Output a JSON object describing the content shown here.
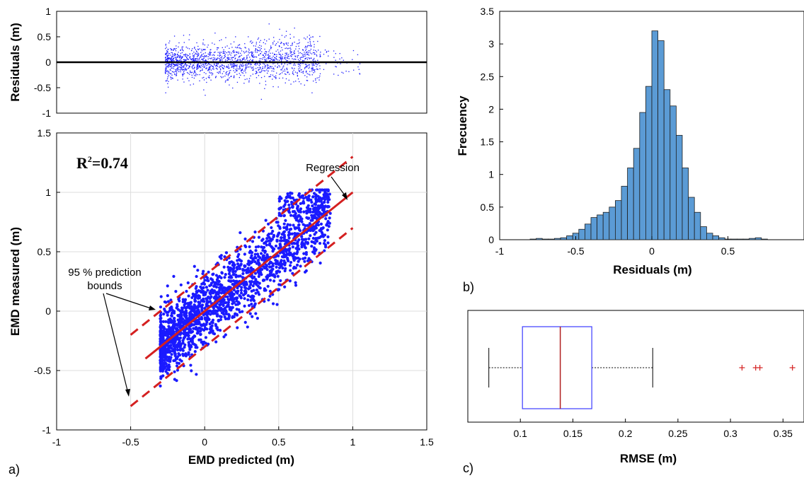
{
  "colors": {
    "scatter": "#1a1aff",
    "regression": "#d42020",
    "histogram_fill": "#5b9bd5",
    "box": "#3b3bff",
    "median": "#b02020",
    "outlier": "#d42020"
  },
  "panel_labels": {
    "a": "a)",
    "b": "b)",
    "c": "c)"
  },
  "chart_data": [
    {
      "id": "residuals",
      "type": "scatter",
      "ylabel": "Residuals (m)",
      "xlim": [
        -1,
        1.5
      ],
      "ylim": [
        -1,
        1
      ],
      "yticks": [
        -1,
        -0.5,
        0,
        0.5,
        1
      ],
      "reference_line_y": 0,
      "point_cloud": {
        "x_range": [
          -0.27,
          1.05
        ],
        "y_range": [
          -0.72,
          0.78
        ]
      }
    },
    {
      "id": "measured_vs_predicted",
      "type": "scatter",
      "xlabel": "EMD predicted (m)",
      "ylabel": "EMD measured (m)",
      "xlim": [
        -1,
        1.5
      ],
      "ylim": [
        -1,
        1.5
      ],
      "xticks": [
        -1,
        -0.5,
        0,
        0.5,
        1,
        1.5
      ],
      "yticks": [
        -1,
        -0.5,
        0,
        0.5,
        1,
        1.5
      ],
      "grid": true,
      "r2_label": "R",
      "r2_sup": "2",
      "r2_value": "=0.74",
      "regression": {
        "name": "Regression",
        "x": [
          -0.4,
          1.0
        ],
        "y": [
          -0.4,
          1.0
        ]
      },
      "prediction_bounds": {
        "name_line1": "95 % prediction",
        "name_line2": "bounds",
        "upper": {
          "x": [
            -0.5,
            1.0
          ],
          "y": [
            -0.2,
            1.3
          ]
        },
        "lower": {
          "x": [
            -0.5,
            1.0
          ],
          "y": [
            -0.8,
            0.7
          ]
        }
      },
      "point_cloud": {
        "x_range": [
          -0.3,
          0.85
        ],
        "y_range": [
          -0.63,
          1.02
        ]
      }
    },
    {
      "id": "residual_histogram",
      "type": "bar",
      "xlabel": "Residuals (m)",
      "ylabel": "Frecuency",
      "xlim": [
        -1,
        1
      ],
      "ylim": [
        0,
        3.5
      ],
      "xticks": [
        -1,
        -0.5,
        0,
        0.5
      ],
      "yticks": [
        0,
        0.5,
        1,
        1.5,
        2,
        2.5,
        3,
        3.5
      ],
      "bin_width": 0.04,
      "bin_centers": [
        -0.78,
        -0.74,
        -0.7,
        -0.66,
        -0.62,
        -0.58,
        -0.54,
        -0.5,
        -0.46,
        -0.42,
        -0.38,
        -0.34,
        -0.3,
        -0.26,
        -0.22,
        -0.18,
        -0.14,
        -0.1,
        -0.06,
        -0.02,
        0.02,
        0.06,
        0.1,
        0.14,
        0.18,
        0.22,
        0.26,
        0.3,
        0.34,
        0.38,
        0.42,
        0.46,
        0.5,
        0.54,
        0.58,
        0.62,
        0.66,
        0.7,
        0.74
      ],
      "values": [
        0.01,
        0.02,
        0.01,
        0.01,
        0.02,
        0.03,
        0.06,
        0.1,
        0.16,
        0.24,
        0.34,
        0.38,
        0.42,
        0.5,
        0.6,
        0.82,
        1.1,
        1.4,
        1.95,
        2.35,
        3.2,
        3.05,
        2.3,
        2.05,
        1.6,
        1.1,
        0.65,
        0.42,
        0.2,
        0.1,
        0.06,
        0.03,
        0.01,
        0.01,
        0.01,
        0.01,
        0.02,
        0.03,
        0.01
      ]
    },
    {
      "id": "rmse_boxplot",
      "type": "box",
      "xlabel": "RMSE (m)",
      "xlim": [
        0.05,
        0.37
      ],
      "xticks": [
        0.1,
        0.15,
        0.2,
        0.25,
        0.3,
        0.35
      ],
      "whisker_low": 0.07,
      "q1": 0.102,
      "median": 0.138,
      "q3": 0.168,
      "whisker_high": 0.226,
      "outliers": [
        0.311,
        0.324,
        0.328,
        0.359
      ]
    }
  ]
}
